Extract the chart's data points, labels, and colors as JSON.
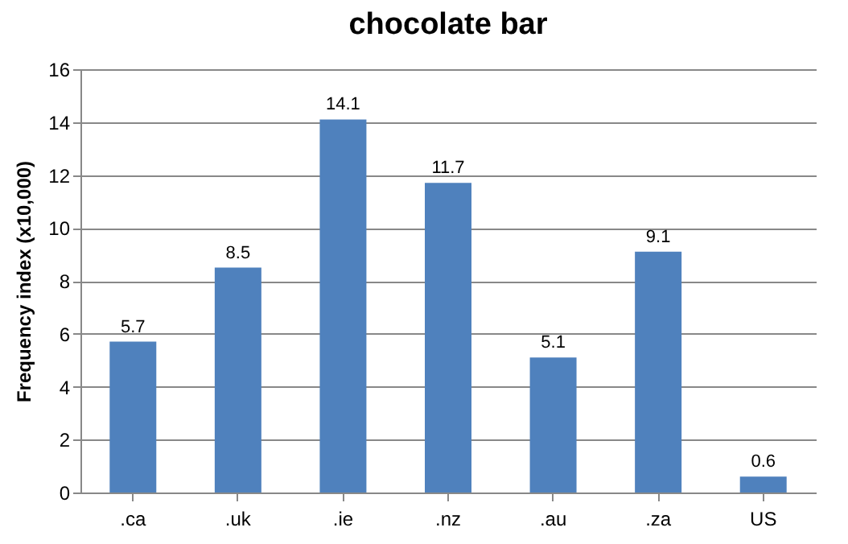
{
  "chart_data": {
    "type": "bar",
    "title": "chocolate bar",
    "ylabel": "Frequency index (x10,000)",
    "categories": [
      ".ca",
      ".uk",
      ".ie",
      ".nz",
      ".au",
      ".za",
      "US"
    ],
    "values": [
      5.7,
      8.5,
      14.1,
      11.7,
      5.1,
      9.1,
      0.6
    ],
    "color": "#4f81bd",
    "ylim": [
      0,
      16
    ],
    "yticks": [
      0,
      2,
      4,
      6,
      8,
      10,
      12,
      14,
      16
    ],
    "grid": "y",
    "data_labels": true
  }
}
